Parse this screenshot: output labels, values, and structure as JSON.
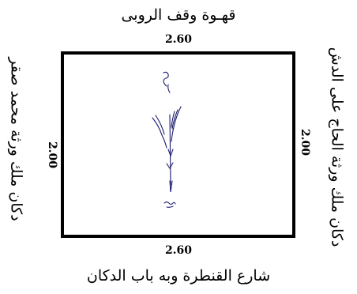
{
  "diagram": {
    "top_label": "قهـوة وقف الروبى",
    "top_dimension": "2.60",
    "bottom_dimension": "2.60",
    "bottom_label": "شارع القنطرة وبه باب الدكان",
    "left_label": "دكان ملك ورثة محمد صقر",
    "left_dimension": "2.00",
    "right_dimension": "2.00",
    "right_label": "دكان ملك ورثة الحاج على الدش"
  },
  "colors": {
    "line": "#000000",
    "sketch_ink": "#1a1a6e"
  }
}
